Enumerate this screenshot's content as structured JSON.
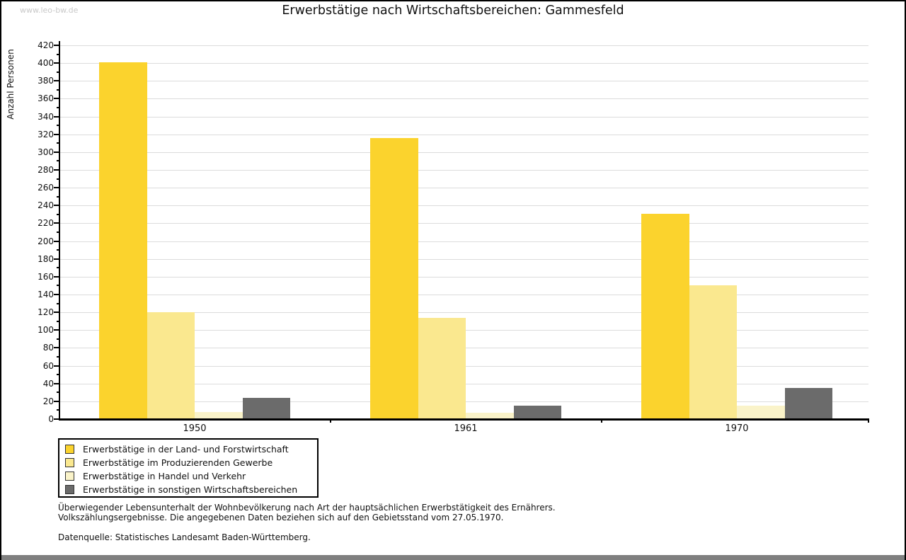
{
  "watermark": "www.leo-bw.de",
  "title": "Erwerbstätige nach Wirtschaftsbereichen: Gammesfeld",
  "chart_data": {
    "type": "bar",
    "title": "Erwerbstätige nach Wirtschaftsbereichen: Gammesfeld",
    "xlabel": "",
    "ylabel": "Anzahl Personen",
    "categories": [
      "1950",
      "1961",
      "1970"
    ],
    "series": [
      {
        "name": "Erwerbstätige in der Land- und Forstwirtschaft",
        "color": "#fbd32d",
        "values": [
          401,
          316,
          231
        ]
      },
      {
        "name": "Erwerbstätige im Produzierenden Gewerbe",
        "color": "#fae88f",
        "values": [
          120,
          114,
          150
        ]
      },
      {
        "name": "Erwerbstätige in Handel und Verkehr",
        "color": "#faf3c9",
        "values": [
          8,
          7,
          15
        ]
      },
      {
        "name": "Erwerbstätige in sonstigen Wirtschaftsbereichen",
        "color": "#6b6b6b",
        "values": [
          24,
          15,
          35
        ]
      }
    ],
    "ylim": [
      0,
      420
    ],
    "ytick_step": 20,
    "yminor_step": 10,
    "grid": true,
    "legend_position": "bottom-left"
  },
  "footnotes": {
    "line1": "Überwiegender Lebensunterhalt der Wohnbevölkerung nach Art der hauptsächlichen Erwerbstätigkeit des Ernährers.",
    "line2": "Volkszählungsergebnisse. Die angegebenen Daten beziehen sich auf den Gebietsstand vom 27.05.1970.",
    "source": "Datenquelle: Statistisches Landesamt Baden-Württemberg."
  },
  "colors": {
    "grid": "#dcdcdc",
    "axis": "#000000",
    "watermark": "#c9c9c9",
    "bottom_strip": "#7f7f7f"
  }
}
